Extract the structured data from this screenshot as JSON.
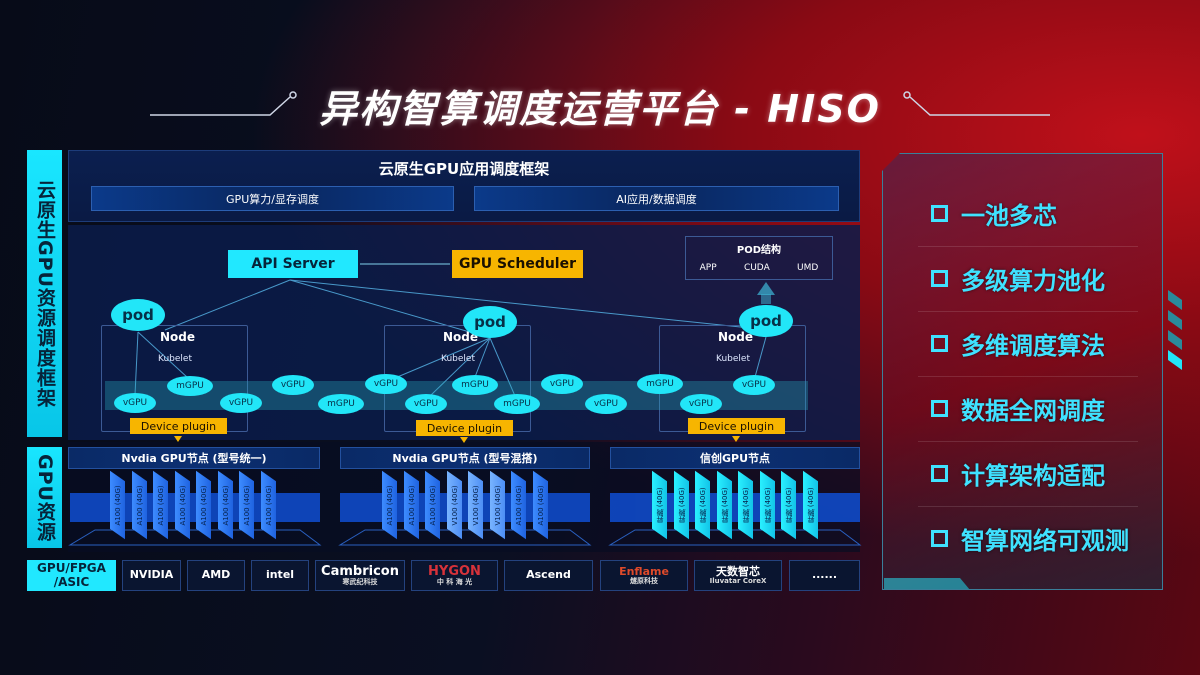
{
  "title": "异构智算调度运营平台 - HISO",
  "side_labels": {
    "framework": "云原生GPU资源调度框架",
    "resources": "GPU资源",
    "hardware": "GPU/FPGA /ASIC"
  },
  "top": {
    "title": "云原生GPU应用调度框架",
    "bars": [
      "GPU算力/显存调度",
      "AI应用/数据调度"
    ]
  },
  "diagram": {
    "api_server": "API Server",
    "gpu_scheduler": "GPU Scheduler",
    "pod_structure": {
      "title": "POD结构",
      "items": [
        "APP",
        "CUDA",
        "UMD"
      ]
    },
    "pod": "pod",
    "node": "Node",
    "kubelet": "Kubelet",
    "device_plugin": "Device plugin",
    "gpu_units": [
      "vGPU",
      "mGPU",
      "vGPU",
      "vGPU",
      "mGPU",
      "vGPU",
      "vGPU",
      "mGPU",
      "mGPU",
      "vGPU",
      "vGPU",
      "mGPU",
      "vGPU",
      "vGPU"
    ]
  },
  "gpu_nodes": [
    {
      "title": "Nvdia GPU节点 (型号统一)",
      "chips": [
        "A100 (40G)",
        "A100 (40G)",
        "A100 (40G)",
        "A100 (40G)",
        "A100 (40G)",
        "A100 (40G)",
        "A100 (40G)",
        "A100 (40G)"
      ]
    },
    {
      "title": "Nvdia GPU节点 (型号混搭)",
      "chips": [
        "A100 (40G)",
        "A100 (40G)",
        "A100 (40G)",
        "V100 (40G)",
        "V100 (40G)",
        "V100 (40G)",
        "A100 (40G)",
        "A100 (40G)"
      ]
    },
    {
      "title": "信创GPU节点",
      "chips": [
        "昇腾 (40G)",
        "昇腾 (40G)",
        "昇腾 (40G)",
        "昇腾 (40G)",
        "昇腾 (40G)",
        "昇腾 (40G)",
        "昇腾 (40G)",
        "昇腾 (40G)"
      ]
    }
  ],
  "vendors": [
    {
      "name": "NVIDIA",
      "sub": ""
    },
    {
      "name": "AMD",
      "sub": ""
    },
    {
      "name": "intel",
      "sub": ""
    },
    {
      "name": "Cambricon",
      "sub": "寒武纪科技"
    },
    {
      "name": "HYGON",
      "sub": "中 科 海 光"
    },
    {
      "name": "Ascend",
      "sub": ""
    },
    {
      "name": "Enflame",
      "sub": "燧原科技"
    },
    {
      "name": "天数智芯",
      "sub": "Iluvatar CoreX"
    },
    {
      "name": "......",
      "sub": ""
    }
  ],
  "features": [
    "一池多芯",
    "多级算力池化",
    "多维调度算法",
    "数据全网调度",
    "计算架构适配",
    "智算网络可观测"
  ],
  "colors": {
    "cyan": "#21e8ff",
    "yellow": "#f7b500",
    "navy": "#0a1a44",
    "feature_text": "#3fe2ff"
  }
}
